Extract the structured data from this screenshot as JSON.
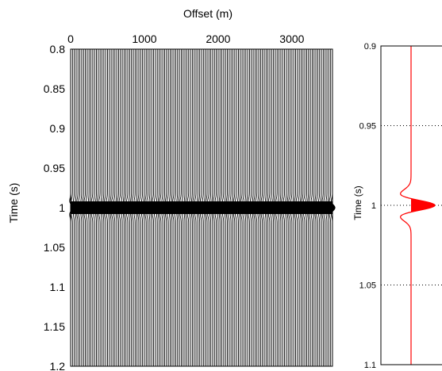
{
  "chart_data": [
    {
      "type": "seismic-wiggle",
      "xlabel": "Offset (m)",
      "ylabel": "Time (s)",
      "xlim": [
        0,
        3550
      ],
      "ylim": [
        0.8,
        1.2
      ],
      "y_reversed": true,
      "x_axis_position": "top",
      "x_ticks": [
        {
          "value": 0,
          "label": "0"
        },
        {
          "value": 1000,
          "label": "1000"
        },
        {
          "value": 2000,
          "label": "2000"
        },
        {
          "value": 3000,
          "label": "3000"
        }
      ],
      "y_ticks": [
        {
          "value": 0.8,
          "label": "0.8"
        },
        {
          "value": 0.85,
          "label": "0.85"
        },
        {
          "value": 0.9,
          "label": "0.9"
        },
        {
          "value": 0.95,
          "label": "0.95"
        },
        {
          "value": 1.0,
          "label": "1"
        },
        {
          "value": 1.05,
          "label": "1.05"
        },
        {
          "value": 1.1,
          "label": "1.1"
        },
        {
          "value": 1.15,
          "label": "1.15"
        },
        {
          "value": 1.2,
          "label": "1.2"
        }
      ],
      "trace_spacing_m": 25,
      "event_time_s": 1.0,
      "trace_color": "#000000",
      "grid": false
    },
    {
      "type": "line",
      "ylabel": "Time (s)",
      "ylim": [
        0.9,
        1.1
      ],
      "y_reversed": true,
      "y_ticks": [
        {
          "value": 0.9,
          "label": "0.9"
        },
        {
          "value": 0.95,
          "label": "0.95"
        },
        {
          "value": 1.0,
          "label": "1"
        },
        {
          "value": 1.05,
          "label": "1.05"
        },
        {
          "value": 1.1,
          "label": "1.1"
        }
      ],
      "wavelet_peak_time_s": 1.0,
      "color": "#ff0000",
      "grid": "dotted-horizontal"
    }
  ]
}
